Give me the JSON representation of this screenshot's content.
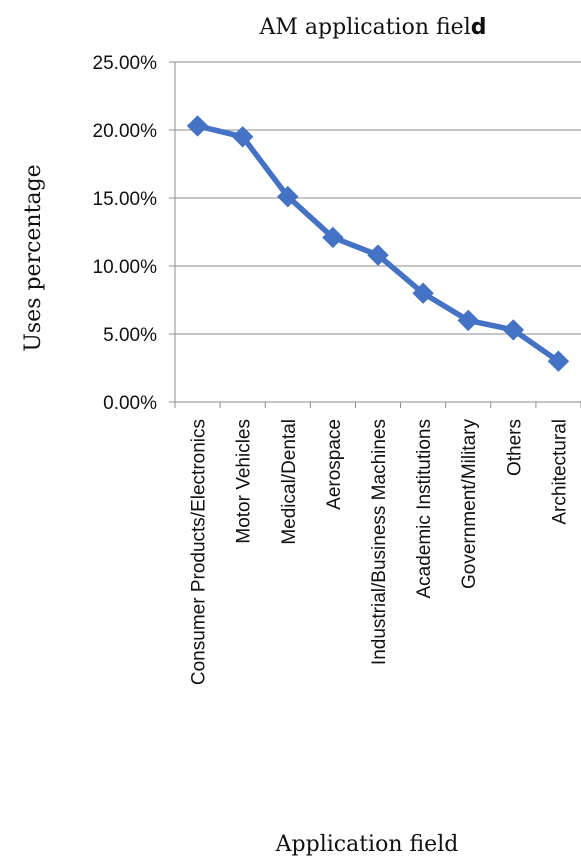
{
  "chart_data": {
    "type": "line",
    "title_main": "AM application fiel",
    "title_tail": "d",
    "xlabel": "Application field",
    "ylabel": "Uses percentage",
    "ylim": [
      0,
      25
    ],
    "ytick_values": [
      0,
      5,
      10,
      15,
      20,
      25
    ],
    "ytick_labels": [
      "0.00%",
      "5.00%",
      "10.00%",
      "15.00%",
      "20.00%",
      "25.00%"
    ],
    "grid": true,
    "legend": "none",
    "categories": [
      "Consumer Products/Electronics",
      "Motor Vehicles",
      "Medical/Dental",
      "Aerospace",
      "Industrial/Business Machines",
      "Academic Institutions",
      "Government/Military",
      "Others",
      "Architectural"
    ],
    "series": [
      {
        "values": [
          20.3,
          19.5,
          15.1,
          12.1,
          10.8,
          8.0,
          6.0,
          5.3,
          3.0
        ],
        "color": "#4472C4",
        "marker": "diamond"
      }
    ]
  }
}
